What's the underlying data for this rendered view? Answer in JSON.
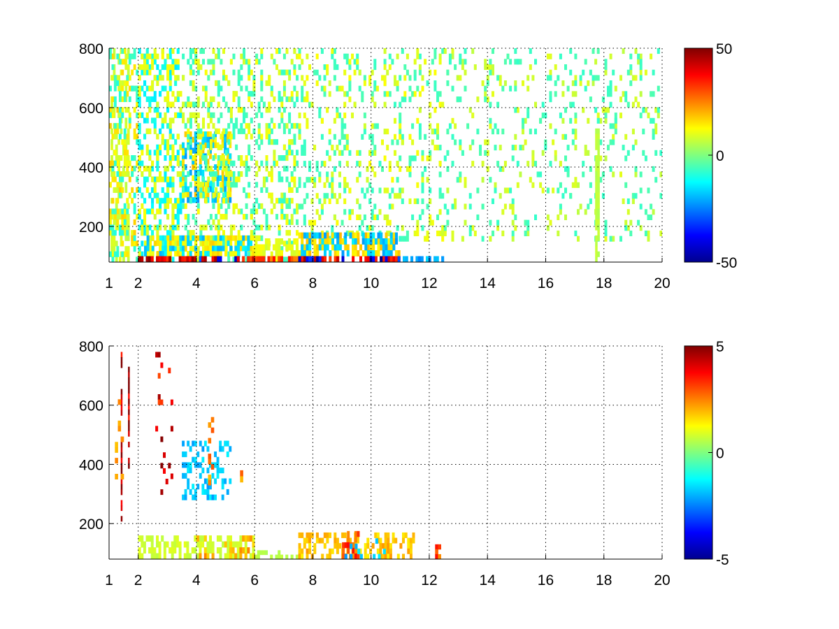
{
  "chart_data": [
    {
      "type": "heatmap",
      "title": "",
      "xlabel": "",
      "ylabel": "",
      "xlim": [
        1,
        20
      ],
      "ylim": [
        80,
        800
      ],
      "grid": true,
      "x_ticks": [
        "1",
        "2",
        "4",
        "6",
        "8",
        "10",
        "12",
        "14",
        "16",
        "18",
        "20"
      ],
      "y_ticks": [
        "200",
        "400",
        "600",
        "800"
      ],
      "colormap": "jet",
      "colorbar": {
        "range": [
          -50,
          50
        ],
        "ticks": [
          "-50",
          "0",
          "50"
        ]
      },
      "cells": [
        {
          "x": [
            1.05,
            1.7
          ],
          "y": [
            80,
            800
          ],
          "value": 8,
          "density": 0.45,
          "note": "thin vertical streaks"
        },
        {
          "x": [
            1.0,
            2.0
          ],
          "y": [
            80,
            800
          ],
          "value": 14,
          "density": 0.22
        },
        {
          "x": [
            1.0,
            2.0
          ],
          "y": [
            80,
            800
          ],
          "value": -8,
          "density": 0.15
        },
        {
          "x": [
            2.0,
            3.5
          ],
          "y": [
            80,
            800
          ],
          "value": -12,
          "density": 0.3
        },
        {
          "x": [
            2.0,
            3.5
          ],
          "y": [
            80,
            800
          ],
          "value": 10,
          "density": 0.25
        },
        {
          "x": [
            3.5,
            5.2
          ],
          "y": [
            280,
            520
          ],
          "value": 15,
          "density": 0.45
        },
        {
          "x": [
            3.5,
            5.2
          ],
          "y": [
            280,
            520
          ],
          "value": -18,
          "density": 0.3
        },
        {
          "x": [
            3.5,
            7.5
          ],
          "y": [
            80,
            800
          ],
          "value": -6,
          "density": 0.18
        },
        {
          "x": [
            3.5,
            7.5
          ],
          "y": [
            80,
            800
          ],
          "value": 10,
          "density": 0.16
        },
        {
          "x": [
            7.5,
            12.5
          ],
          "y": [
            150,
            800
          ],
          "value": -6,
          "density": 0.12
        },
        {
          "x": [
            7.5,
            12.5
          ],
          "y": [
            150,
            800
          ],
          "value": 10,
          "density": 0.1
        },
        {
          "x": [
            12.5,
            20
          ],
          "y": [
            150,
            800
          ],
          "value": 8,
          "density": 0.07
        },
        {
          "x": [
            12.5,
            20
          ],
          "y": [
            150,
            800
          ],
          "value": -6,
          "density": 0.07
        },
        {
          "x": [
            17.7,
            17.85
          ],
          "y": [
            80,
            530
          ],
          "value": 6,
          "density": 0.9
        },
        {
          "x": [
            2.2,
            6.0
          ],
          "y": [
            100,
            170
          ],
          "value": 14,
          "density": 0.6
        },
        {
          "x": [
            2.2,
            6.0
          ],
          "y": [
            100,
            170
          ],
          "value": -16,
          "density": 0.35
        },
        {
          "x": [
            6.0,
            7.5
          ],
          "y": [
            100,
            160
          ],
          "value": 10,
          "density": 0.45
        },
        {
          "x": [
            7.5,
            11.0
          ],
          "y": [
            100,
            180
          ],
          "value": 16,
          "density": 0.55
        },
        {
          "x": [
            7.5,
            11.0
          ],
          "y": [
            100,
            180
          ],
          "value": -18,
          "density": 0.4
        },
        {
          "x": [
            2.0,
            4.0
          ],
          "y": [
            80,
            100
          ],
          "value": 42,
          "density": 0.85
        },
        {
          "x": [
            4.0,
            6.0
          ],
          "y": [
            80,
            100
          ],
          "value": -35,
          "density": 0.55
        },
        {
          "x": [
            4.0,
            6.0
          ],
          "y": [
            80,
            100
          ],
          "value": 38,
          "density": 0.45
        },
        {
          "x": [
            6.0,
            7.5
          ],
          "y": [
            80,
            100
          ],
          "value": 30,
          "density": 0.6
        },
        {
          "x": [
            7.5,
            11.0
          ],
          "y": [
            80,
            100
          ],
          "value": 40,
          "density": 0.5
        },
        {
          "x": [
            7.5,
            11.0
          ],
          "y": [
            80,
            100
          ],
          "value": -40,
          "density": 0.35
        },
        {
          "x": [
            11.0,
            12.5
          ],
          "y": [
            80,
            100
          ],
          "value": -20,
          "density": 0.5
        }
      ]
    },
    {
      "type": "heatmap",
      "title": "",
      "xlabel": "",
      "ylabel": "",
      "xlim": [
        1,
        20
      ],
      "ylim": [
        80,
        800
      ],
      "grid": true,
      "x_ticks": [
        "1",
        "2",
        "4",
        "6",
        "8",
        "10",
        "12",
        "14",
        "16",
        "18",
        "20"
      ],
      "y_ticks": [
        "200",
        "400",
        "600",
        "800"
      ],
      "colormap": "jet",
      "colorbar": {
        "range": [
          -5,
          5
        ],
        "ticks": [
          "-5",
          "0",
          "5"
        ]
      },
      "cells": [
        {
          "x": [
            1.4,
            1.45
          ],
          "y": [
            190,
            780
          ],
          "value": 4.6,
          "density": 0.8
        },
        {
          "x": [
            1.65,
            1.7
          ],
          "y": [
            350,
            730
          ],
          "value": 4.6,
          "density": 0.8
        },
        {
          "x": [
            1.2,
            1.5
          ],
          "y": [
            350,
            620
          ],
          "value": 2,
          "density": 0.15
        },
        {
          "x": [
            2.5,
            3.2
          ],
          "y": [
            280,
            780
          ],
          "value": 4,
          "density": 0.1
        },
        {
          "x": [
            3.5,
            5.2
          ],
          "y": [
            280,
            480
          ],
          "value": -1.8,
          "density": 0.35
        },
        {
          "x": [
            4.4,
            4.6
          ],
          "y": [
            330,
            560
          ],
          "value": 2.5,
          "density": 0.4
        },
        {
          "x": [
            5.5,
            5.6
          ],
          "y": [
            300,
            380
          ],
          "value": 2.5,
          "density": 0.6
        },
        {
          "x": [
            2.0,
            6.0
          ],
          "y": [
            80,
            160
          ],
          "value": 0.8,
          "density": 0.55
        },
        {
          "x": [
            4.0,
            6.0
          ],
          "y": [
            80,
            160
          ],
          "value": 2,
          "density": 0.3
        },
        {
          "x": [
            6.0,
            7.5
          ],
          "y": [
            80,
            110
          ],
          "value": 0.6,
          "density": 0.5
        },
        {
          "x": [
            7.5,
            11.5
          ],
          "y": [
            80,
            170
          ],
          "value": 1.8,
          "density": 0.45
        },
        {
          "x": [
            9.0,
            9.6
          ],
          "y": [
            80,
            175
          ],
          "value": 3,
          "density": 0.55
        },
        {
          "x": [
            9.0,
            10.5
          ],
          "y": [
            80,
            150
          ],
          "value": -1.8,
          "density": 0.2
        },
        {
          "x": [
            12.2,
            12.4
          ],
          "y": [
            80,
            130
          ],
          "value": 3,
          "density": 0.5
        }
      ]
    }
  ]
}
